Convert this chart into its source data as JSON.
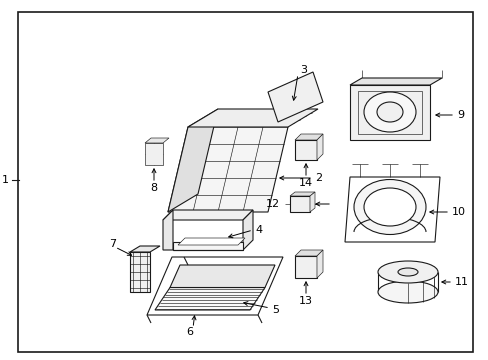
{
  "bg_color": "#ffffff",
  "border_color": "#1a1a1a",
  "line_color": "#1a1a1a",
  "text_color": "#000000",
  "fig_width": 4.89,
  "fig_height": 3.6,
  "dpi": 100
}
